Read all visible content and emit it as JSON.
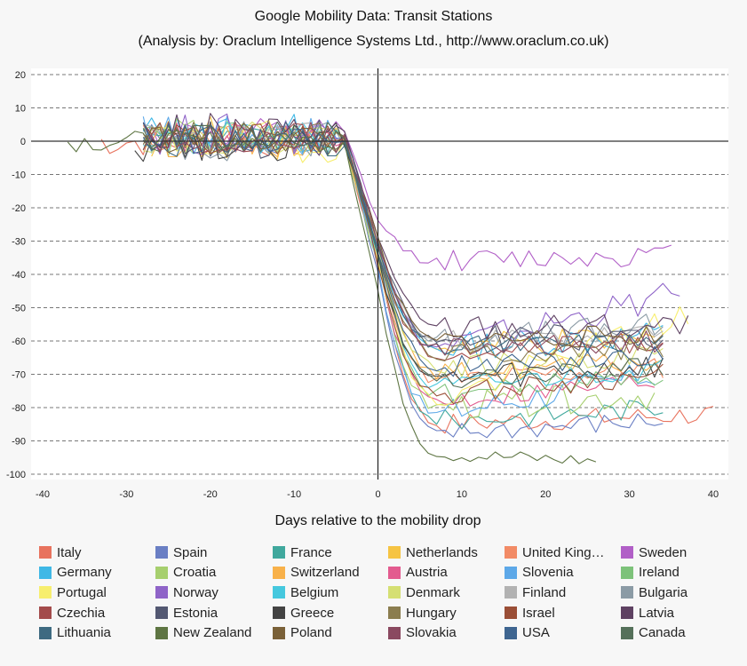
{
  "chart_data": {
    "type": "line",
    "title": "Google Mobility Data: Transit Stations",
    "subtitle": "(Analysis by: Oraclum Intelligence Systems Ltd., http://www.oraclum.co.uk)",
    "xlabel": "Days relative to the mobility drop",
    "ylabel": "",
    "xlim": [
      -42,
      42
    ],
    "ylim": [
      -100,
      22
    ],
    "x_ticks": [
      -40,
      -30,
      -20,
      -10,
      0,
      10,
      20,
      30,
      40
    ],
    "y_ticks": [
      20,
      10,
      0,
      -10,
      -20,
      -30,
      -40,
      -50,
      -60,
      -70,
      -80,
      -90,
      -100
    ],
    "grid": "horizontal dashed",
    "legend_position": "bottom",
    "series": [
      {
        "name": "Italy",
        "color": "#e8735e",
        "x_start": -33,
        "x_end": 40,
        "pre": 0,
        "drop": -38,
        "plateau": -85,
        "end": -82,
        "noise": 3
      },
      {
        "name": "Spain",
        "color": "#6a7fc4",
        "x_start": -28,
        "x_end": 34,
        "pre": 1,
        "drop": -40,
        "plateau": -88,
        "end": -84,
        "noise": 3
      },
      {
        "name": "France",
        "color": "#40a89d",
        "x_start": -28,
        "x_end": 34,
        "pre": 0,
        "drop": -35,
        "plateau": -84,
        "end": -80,
        "noise": 3
      },
      {
        "name": "Netherlands",
        "color": "#f6c443",
        "x_start": -27,
        "x_end": 33,
        "pre": 1,
        "drop": -32,
        "plateau": -62,
        "end": -60,
        "noise": 4
      },
      {
        "name": "United Kingdom",
        "color": "#f28b66",
        "x_start": -28,
        "x_end": 34,
        "pre": 1,
        "drop": -34,
        "plateau": -72,
        "end": -68,
        "noise": 3
      },
      {
        "name": "Sweden",
        "color": "#b15fc7",
        "x_start": -27,
        "x_end": 35,
        "pre": 2,
        "drop": -24,
        "plateau": -36,
        "end": -34,
        "noise": 3
      },
      {
        "name": "Germany",
        "color": "#3fb8e6",
        "x_start": -28,
        "x_end": 34,
        "pre": 2,
        "drop": -33,
        "plateau": -62,
        "end": -58,
        "noise": 4
      },
      {
        "name": "Croatia",
        "color": "#a6cf6e",
        "x_start": -28,
        "x_end": 33,
        "pre": 1,
        "drop": -38,
        "plateau": -80,
        "end": -76,
        "noise": 4
      },
      {
        "name": "Switzerland",
        "color": "#f8b14a",
        "x_start": -28,
        "x_end": 34,
        "pre": 0,
        "drop": -35,
        "plateau": -70,
        "end": -66,
        "noise": 3
      },
      {
        "name": "Austria",
        "color": "#e35b8f",
        "x_start": -27,
        "x_end": 33,
        "pre": 1,
        "drop": -36,
        "plateau": -78,
        "end": -72,
        "noise": 3
      },
      {
        "name": "Slovenia",
        "color": "#5da8e8",
        "x_start": -28,
        "x_end": 33,
        "pre": 2,
        "drop": -38,
        "plateau": -82,
        "end": -70,
        "noise": 4
      },
      {
        "name": "Ireland",
        "color": "#7dc27a",
        "x_start": -28,
        "x_end": 34,
        "pre": 1,
        "drop": -35,
        "plateau": -76,
        "end": -70,
        "noise": 3
      },
      {
        "name": "Portugal",
        "color": "#f7ee6e",
        "x_start": -28,
        "x_end": 37,
        "pre": 0,
        "drop": -34,
        "plateau": -78,
        "end": -52,
        "noise": 4
      },
      {
        "name": "Norway",
        "color": "#8f64c8",
        "x_start": -28,
        "x_end": 36,
        "pre": 2,
        "drop": -30,
        "plateau": -62,
        "end": -46,
        "noise": 4
      },
      {
        "name": "Belgium",
        "color": "#45c8de",
        "x_start": -28,
        "x_end": 34,
        "pre": 1,
        "drop": -34,
        "plateau": -74,
        "end": -68,
        "noise": 3
      },
      {
        "name": "Denmark",
        "color": "#d5df73",
        "x_start": -28,
        "x_end": 34,
        "pre": 1,
        "drop": -32,
        "plateau": -68,
        "end": -64,
        "noise": 3
      },
      {
        "name": "Finland",
        "color": "#b2b2b2",
        "x_start": -28,
        "x_end": 34,
        "pre": 1,
        "drop": -30,
        "plateau": -60,
        "end": -58,
        "noise": 3
      },
      {
        "name": "Bulgaria",
        "color": "#8b9ba5",
        "x_start": -28,
        "x_end": 34,
        "pre": 0,
        "drop": -32,
        "plateau": -60,
        "end": -56,
        "noise": 4
      },
      {
        "name": "Czechia",
        "color": "#a34b4b",
        "x_start": -28,
        "x_end": 34,
        "pre": 1,
        "drop": -33,
        "plateau": -64,
        "end": -60,
        "noise": 3
      },
      {
        "name": "Estonia",
        "color": "#535872",
        "x_start": -28,
        "x_end": 34,
        "pre": 1,
        "drop": -30,
        "plateau": -60,
        "end": -58,
        "noise": 4
      },
      {
        "name": "Greece",
        "color": "#434343",
        "x_start": -29,
        "x_end": 34,
        "pre": 0,
        "drop": -34,
        "plateau": -72,
        "end": -68,
        "noise": 4
      },
      {
        "name": "Hungary",
        "color": "#8b7d4f",
        "x_start": -28,
        "x_end": 34,
        "pre": 1,
        "drop": -32,
        "plateau": -64,
        "end": -62,
        "noise": 3
      },
      {
        "name": "Israel",
        "color": "#9a4e36",
        "x_start": -28,
        "x_end": 34,
        "pre": 1,
        "drop": -36,
        "plateau": -76,
        "end": -70,
        "noise": 3
      },
      {
        "name": "Latvia",
        "color": "#5e4162",
        "x_start": -28,
        "x_end": 37,
        "pre": 2,
        "drop": -28,
        "plateau": -56,
        "end": -56,
        "noise": 4
      },
      {
        "name": "Lithuania",
        "color": "#3e6a81",
        "x_start": -28,
        "x_end": 34,
        "pre": 0,
        "drop": -32,
        "plateau": -62,
        "end": -60,
        "noise": 3
      },
      {
        "name": "New Zealand",
        "color": "#5e7543",
        "x_start": -37,
        "x_end": 26,
        "pre": 0,
        "drop": -45,
        "plateau": -94,
        "end": -96,
        "noise": 2
      },
      {
        "name": "Poland",
        "color": "#7a6138",
        "x_start": -28,
        "x_end": 34,
        "pre": 1,
        "drop": -30,
        "plateau": -60,
        "end": -58,
        "noise": 3
      },
      {
        "name": "Slovakia",
        "color": "#8a4960",
        "x_start": -28,
        "x_end": 34,
        "pre": 1,
        "drop": -30,
        "plateau": -62,
        "end": -60,
        "noise": 3
      },
      {
        "name": "USA",
        "color": "#3e6590",
        "x_start": -28,
        "x_end": 34,
        "pre": 1,
        "drop": -33,
        "plateau": -68,
        "end": -64,
        "noise": 3
      },
      {
        "name": "Canada",
        "color": "#55705a",
        "x_start": -28,
        "x_end": 34,
        "pre": 1,
        "drop": -34,
        "plateau": -72,
        "end": -68,
        "noise": 3
      }
    ]
  },
  "legend_labels": [
    "Italy",
    "Spain",
    "France",
    "Netherlands",
    "United King…",
    "Sweden",
    "Germany",
    "Croatia",
    "Switzerland",
    "Austria",
    "Slovenia",
    "Ireland",
    "Portugal",
    "Norway",
    "Belgium",
    "Denmark",
    "Finland",
    "Bulgaria",
    "Czechia",
    "Estonia",
    "Greece",
    "Hungary",
    "Israel",
    "Latvia",
    "Lithuania",
    "New Zealand",
    "Poland",
    "Slovakia",
    "USA",
    "Canada"
  ]
}
